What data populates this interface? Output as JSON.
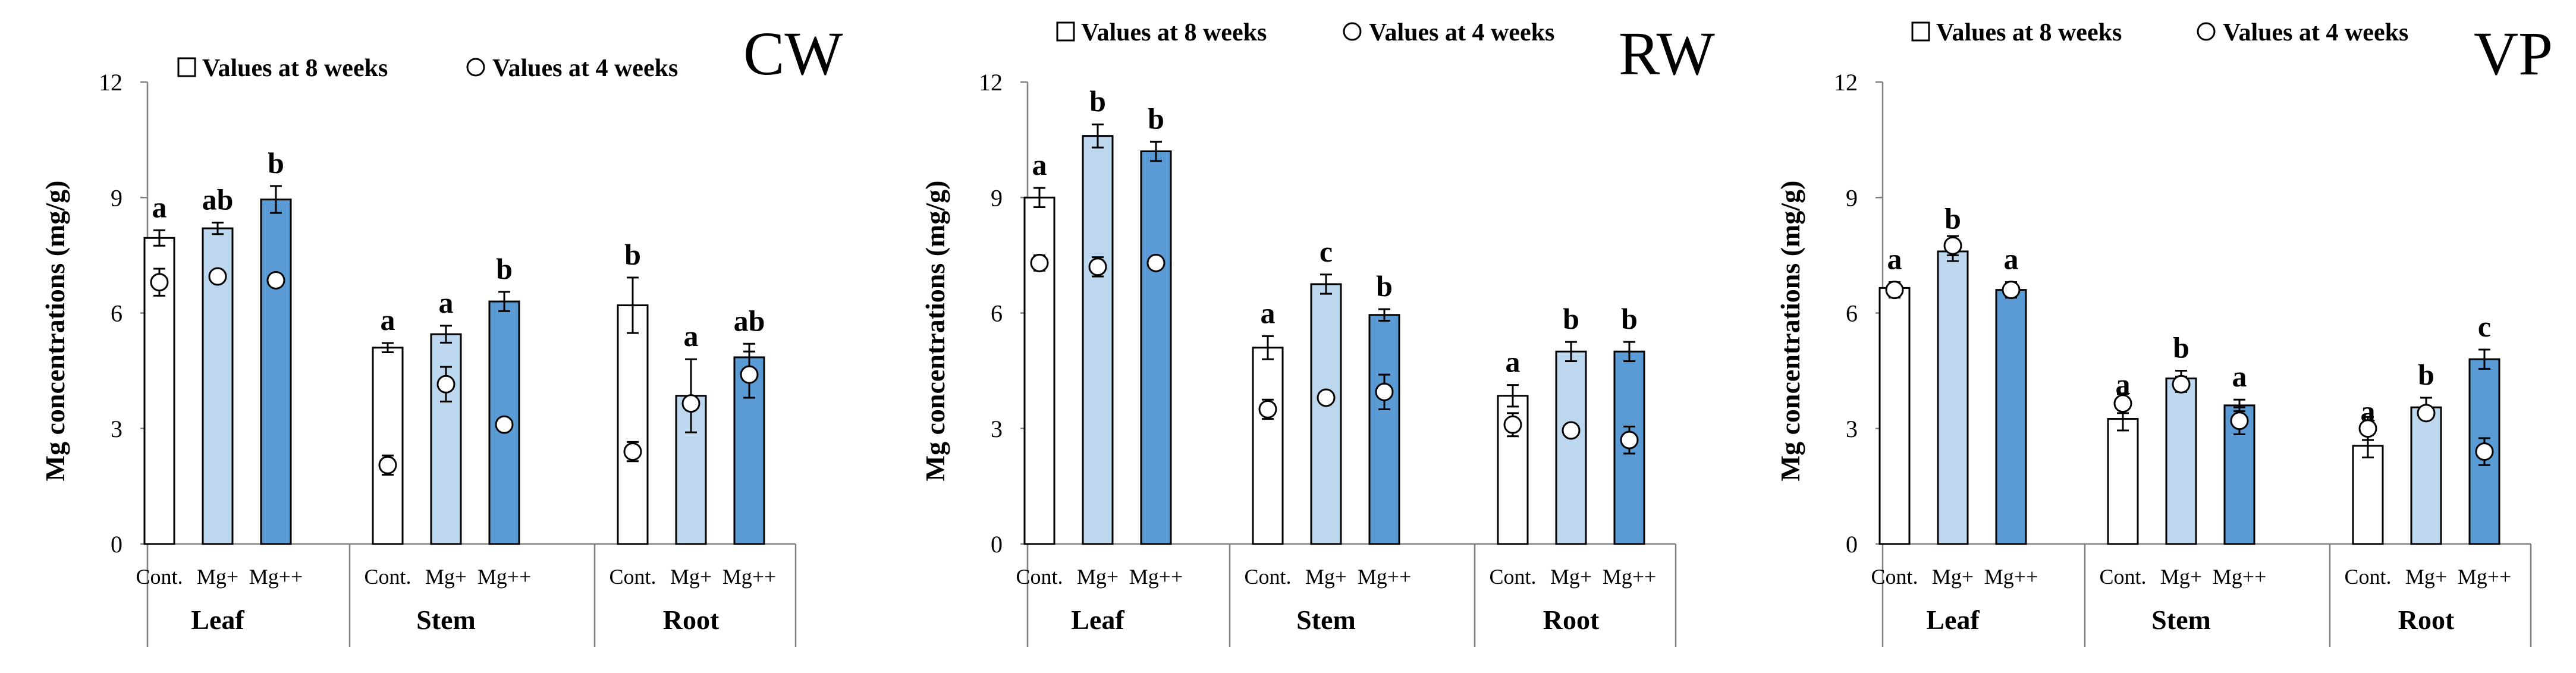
{
  "chart_data": [
    {
      "type": "bar",
      "title": "CW",
      "ylabel": "Mg concentrations (mg/g)",
      "ylim": [
        0,
        12
      ],
      "yticks": [
        "0",
        "3",
        "6",
        "9",
        "12"
      ],
      "legend": [
        "Values at 8 weeks",
        "Values at 4 weeks"
      ],
      "legend_position": "top",
      "groups": [
        "Leaf",
        "Stem",
        "Root"
      ],
      "categories": [
        "Cont.",
        "Mg+",
        "Mg++"
      ],
      "colors": [
        "#ffffff",
        "#bdd7ee",
        "#5b9bd5"
      ],
      "bars_8wk": [
        [
          7.95,
          8.2,
          8.95
        ],
        [
          5.1,
          5.45,
          6.3
        ],
        [
          6.2,
          3.85,
          4.85
        ]
      ],
      "bars_8wk_err": [
        [
          0.2,
          0.15,
          0.35
        ],
        [
          0.12,
          0.22,
          0.25
        ],
        [
          0.72,
          0.95,
          0.35
        ]
      ],
      "points_4wk": [
        [
          6.8,
          6.95,
          6.85
        ],
        [
          2.05,
          4.15,
          3.1
        ],
        [
          2.4,
          3.65,
          4.4
        ]
      ],
      "points_4wk_err": [
        [
          0.35,
          0,
          0
        ],
        [
          0.25,
          0.45,
          0
        ],
        [
          0.25,
          0,
          0.6
        ]
      ],
      "letters": [
        [
          "a",
          "ab",
          "b"
        ],
        [
          "a",
          "a",
          "b"
        ],
        [
          "b",
          "a",
          "ab"
        ]
      ]
    },
    {
      "type": "bar",
      "title": "RW",
      "ylabel": "Mg concentrations (mg/g)",
      "ylim": [
        0,
        12
      ],
      "yticks": [
        "0",
        "3",
        "6",
        "9",
        "12"
      ],
      "legend": [
        "Values at 8 weeks",
        "Values at 4 weeks"
      ],
      "legend_position": "top",
      "groups": [
        "Leaf",
        "Stem",
        "Root"
      ],
      "categories": [
        "Cont.",
        "Mg+",
        "Mg++"
      ],
      "colors": [
        "#ffffff",
        "#bdd7ee",
        "#5b9bd5"
      ],
      "bars_8wk": [
        [
          9.0,
          10.6,
          10.2
        ],
        [
          5.1,
          6.75,
          5.95
        ],
        [
          3.85,
          5.0,
          5.0
        ]
      ],
      "bars_8wk_err": [
        [
          0.25,
          0.3,
          0.25
        ],
        [
          0.3,
          0.25,
          0.15
        ],
        [
          0.28,
          0.25,
          0.25
        ]
      ],
      "points_4wk": [
        [
          7.3,
          7.2,
          7.3
        ],
        [
          3.5,
          3.8,
          3.95
        ],
        [
          3.1,
          2.95,
          2.7
        ]
      ],
      "points_4wk_err": [
        [
          0.2,
          0.25,
          0
        ],
        [
          0.25,
          0,
          0.45
        ],
        [
          0.3,
          0,
          0.35
        ]
      ],
      "letters": [
        [
          "a",
          "b",
          "b"
        ],
        [
          "a",
          "c",
          "b"
        ],
        [
          "a",
          "b",
          "b"
        ]
      ]
    },
    {
      "type": "bar",
      "title": "VP",
      "ylabel": "Mg concentrations (mg/g)",
      "ylim": [
        0,
        12
      ],
      "yticks": [
        "0",
        "3",
        "6",
        "9",
        "12"
      ],
      "legend": [
        "Values at 8 weeks",
        "Values at 4 weeks"
      ],
      "legend_position": "top",
      "groups": [
        "Leaf",
        "Stem",
        "Root"
      ],
      "categories": [
        "Cont.",
        "Mg+",
        "Mg++"
      ],
      "colors": [
        "#ffffff",
        "#bdd7ee",
        "#5b9bd5"
      ],
      "bars_8wk": [
        [
          6.65,
          7.6,
          6.6
        ],
        [
          3.25,
          4.3,
          3.6
        ],
        [
          2.55,
          3.55,
          4.8
        ]
      ],
      "bars_8wk_err": [
        [
          0.15,
          0.25,
          0.2
        ],
        [
          0.3,
          0.2,
          0.15
        ],
        [
          0.3,
          0.25,
          0.25
        ]
      ],
      "points_4wk": [
        [
          6.6,
          7.75,
          6.6
        ],
        [
          3.65,
          4.15,
          3.2
        ],
        [
          3.0,
          3.4,
          2.4
        ]
      ],
      "points_4wk_err": [
        [
          0.2,
          0.25,
          0.2
        ],
        [
          0.25,
          0.2,
          0.35
        ],
        [
          0.3,
          0,
          0.35
        ]
      ],
      "letters": [
        [
          "a",
          "b",
          "a"
        ],
        [
          "a",
          "b",
          "a"
        ],
        [
          "a",
          "b",
          "c"
        ]
      ]
    }
  ]
}
